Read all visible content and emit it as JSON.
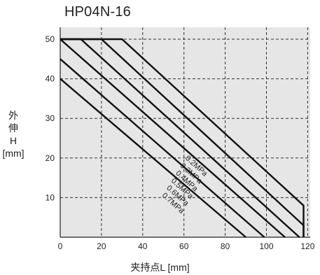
{
  "chart_data": {
    "type": "line",
    "title": "HP04N-16",
    "xlabel": "夹持点L [mm]",
    "ylabel": "外\n伸\nH\n[mm]",
    "xlim": [
      0,
      122
    ],
    "ylim": [
      0,
      52
    ],
    "x_ticks": [
      0,
      20,
      40,
      60,
      80,
      100,
      120
    ],
    "y_ticks": [
      10,
      20,
      30,
      40,
      50
    ],
    "grid": true,
    "background": "#e6e6e6",
    "series": [
      {
        "name": "0.2MPa",
        "points": [
          [
            0,
            50
          ],
          [
            30,
            50
          ],
          [
            118,
            8
          ],
          [
            118,
            0
          ]
        ]
      },
      {
        "name": "0.3MPa",
        "points": [
          [
            0,
            50
          ],
          [
            20,
            50
          ],
          [
            118,
            3
          ],
          [
            118,
            0
          ]
        ]
      },
      {
        "name": "0.4MPa",
        "points": [
          [
            0,
            50
          ],
          [
            10,
            50
          ],
          [
            116,
            0
          ]
        ]
      },
      {
        "name": "0.5MPa",
        "points": [
          [
            0,
            50
          ],
          [
            109,
            0
          ]
        ]
      },
      {
        "name": "0.6MPa",
        "points": [
          [
            0,
            45
          ],
          [
            99,
            0
          ]
        ]
      },
      {
        "name": "0.7MPa",
        "points": [
          [
            0,
            40
          ],
          [
            90,
            0
          ]
        ]
      }
    ]
  }
}
